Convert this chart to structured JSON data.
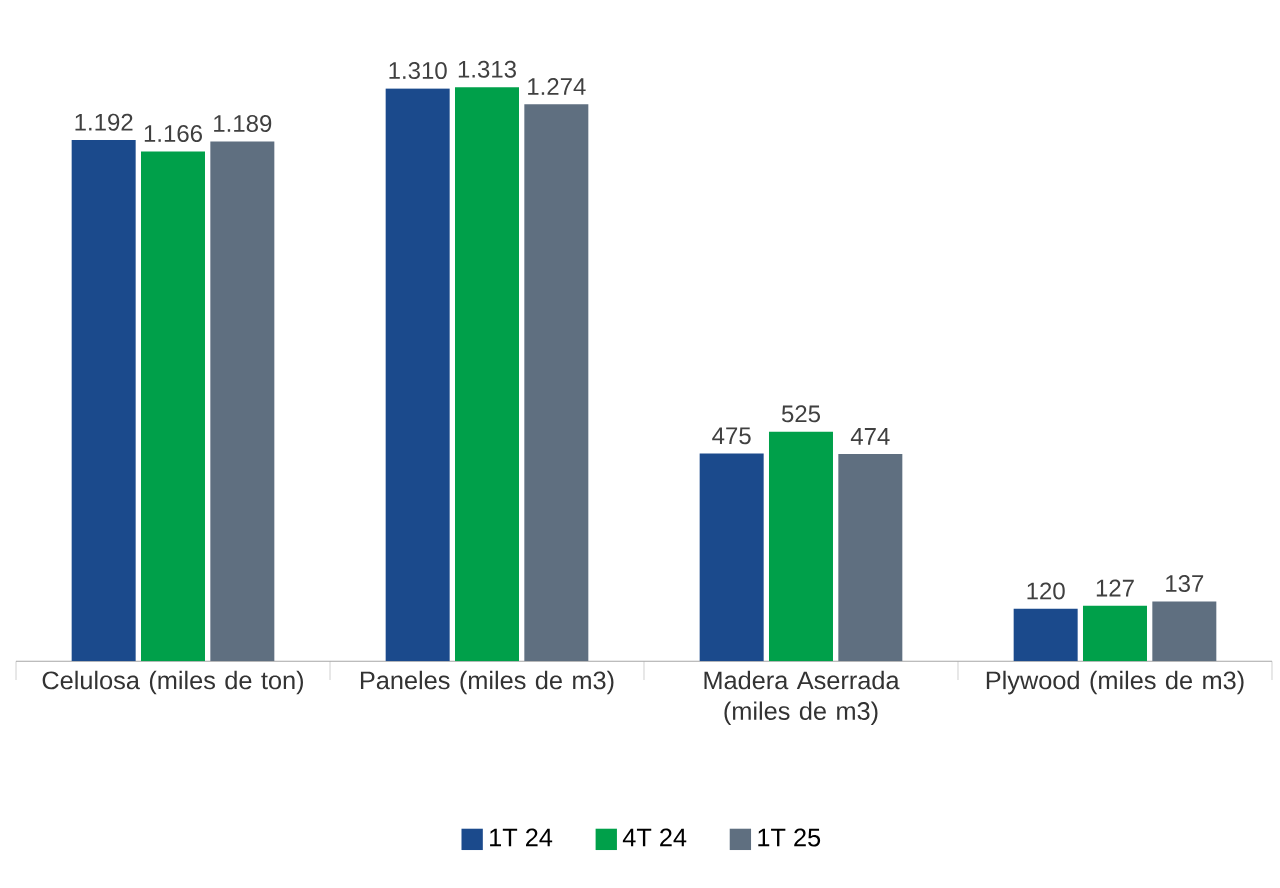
{
  "chart_data": {
    "type": "bar",
    "categories": [
      "Celulosa (miles de ton)",
      "Paneles (miles de m3)",
      "Madera Aserrada (miles de m3)",
      "Plywood (miles de m3)"
    ],
    "series": [
      {
        "name": "1T 24",
        "color": "#1b4a8c",
        "values": [
          1192,
          1310,
          475,
          120
        ],
        "value_labels": [
          "1.192",
          "1.310",
          "475",
          "120"
        ]
      },
      {
        "name": "4T 24",
        "color": "#00a04a",
        "values": [
          1166,
          1313,
          525,
          127
        ],
        "value_labels": [
          "1.166",
          "1.313",
          "525",
          "127"
        ]
      },
      {
        "name": "1T 25",
        "color": "#5f6f80",
        "values": [
          1189,
          1274,
          474,
          137
        ],
        "value_labels": [
          "1.189",
          "1.274",
          "474",
          "137"
        ]
      }
    ],
    "legend": "bottom",
    "tick_labels": "x"
  }
}
